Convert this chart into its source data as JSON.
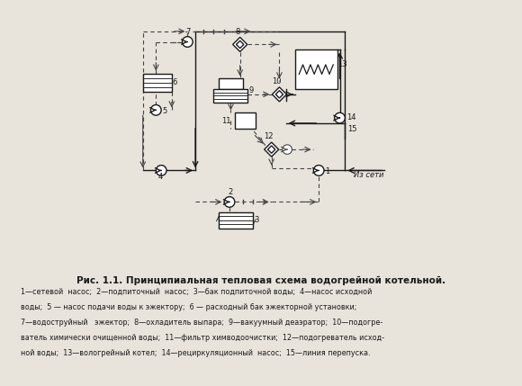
{
  "title": "Рис. 1.1. Принципиальная тепловая схема водогрейной котельной.",
  "caption_lines": [
    "1—сетевой  насос;  2—подпиточный  насос;  3—бак подпиточной воды;  4—насос исходной",
    "воды;  5 — насос подачи воды к эжектору;  6 — расходный бак эжекторной установки;",
    "7—водоструйный   эжектор;  8—охладитель выпара;  9—вакуумный деаэратор;  10—подогре-",
    "ватель химически очищенной воды;  11—фильтр химводоочистки;  12—подогреватель исход-",
    "ной воды;  13—вологрейный котел;  14—рециркуляционный  насос;  15—линия перепуска."
  ],
  "bg_color": "#e8e4dc",
  "diagram_bg": "#f5f2ec",
  "line_color": "#1a1a1a",
  "dashed_color": "#444444"
}
